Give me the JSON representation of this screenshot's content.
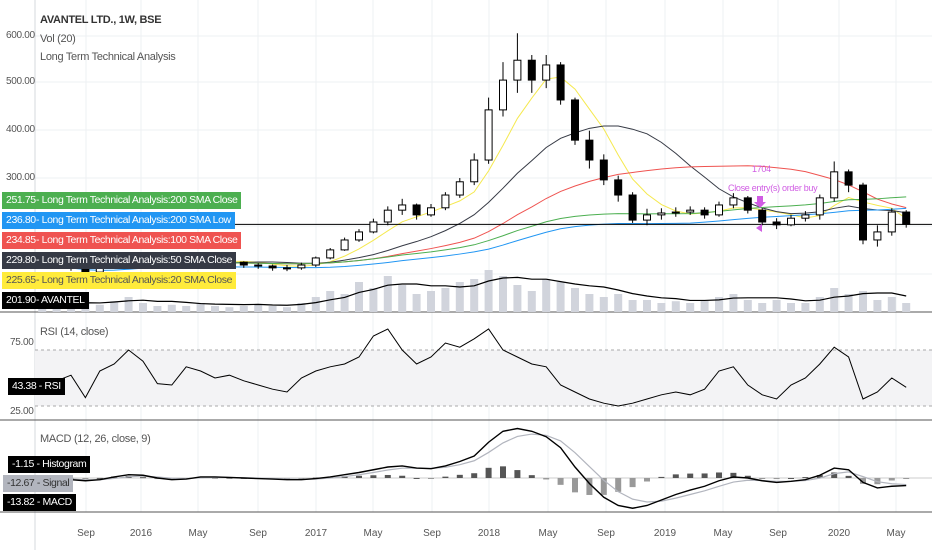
{
  "header": {
    "symbol_title": "AVANTEL LTD., 1W, BSE",
    "volume_study": "Vol (20)",
    "study_name": "Long Term Technical Analysis"
  },
  "price_axis": {
    "ticks": [
      "600.00",
      "500.00",
      "400.00",
      "300.00"
    ]
  },
  "price_tags": [
    {
      "value": "251.75",
      "label": "Long Term Technical Analysis:200 SMA Close",
      "color": "#4caf50",
      "text_color": "#ffffff"
    },
    {
      "value": "236.80",
      "label": "Long Term Technical Analysis:200 SMA Low",
      "color": "#2196f3",
      "text_color": "#ffffff"
    },
    {
      "value": "234.85",
      "label": "Long Term Technical Analysis:100 SMA Close",
      "color": "#ef5350",
      "text_color": "#ffffff"
    },
    {
      "value": "229.80",
      "label": "Long Term Technical Analysis:50 SMA Close",
      "color": "#363a45",
      "text_color": "#ffffff"
    },
    {
      "value": "225.65",
      "label": "Long Term Technical Analysis:20 SMA Close",
      "color": "#ffeb3b",
      "text_color": "#555555"
    },
    {
      "value": "201.90",
      "label": "AVANTEL",
      "color": "#000000",
      "text_color": "#ffffff"
    }
  ],
  "annotations": {
    "value_label": "1704",
    "order_label": "Close entry(s) order buy",
    "color": "#d05ce3"
  },
  "rsi": {
    "title": "RSI (14, close)",
    "ticks": [
      "75.00",
      "25.00"
    ],
    "tag_value": "43.38",
    "tag_label": "RSI"
  },
  "macd": {
    "title": "MACD (12, 26, close, 9)",
    "tags": [
      {
        "value": "-1.15",
        "label": "Histogram",
        "color": "#000000",
        "text_color": "#ffffff"
      },
      {
        "value": "-12.67",
        "label": "Signal",
        "color": "#b2b5be",
        "text_color": "#333333"
      },
      {
        "value": "-13.82",
        "label": "MACD",
        "color": "#000000",
        "text_color": "#ffffff"
      }
    ]
  },
  "time_axis": {
    "ticks": [
      "Sep",
      "2016",
      "May",
      "Sep",
      "2017",
      "May",
      "Sep",
      "2018",
      "May",
      "Sep",
      "2019",
      "May",
      "Sep",
      "2020",
      "May"
    ]
  },
  "chart_data": {
    "type": "candlestick",
    "title": "AVANTEL LTD., 1W, BSE",
    "period": "monthly approximation, Jun 2015 - Jun 2020",
    "ylim": [
      40,
      640
    ],
    "grid": true,
    "colors": {
      "up": "#ffffff",
      "down": "#000000",
      "sma20": "#f5e94f",
      "sma50": "#363a45",
      "sma100": "#ef5350",
      "sma200_close": "#4caf50",
      "sma200_low": "#2196f3",
      "volume": "#d1d4dc",
      "last_price_line": "#000000"
    },
    "close": [
      122,
      116,
      110,
      101,
      110,
      122,
      135,
      131,
      122,
      116,
      122,
      131,
      127,
      122,
      116,
      114,
      110,
      110,
      116,
      131,
      148,
      169,
      186,
      207,
      232,
      243,
      222,
      237,
      264,
      292,
      338,
      444,
      507,
      549,
      507,
      539,
      465,
      380,
      338,
      296,
      264,
      211,
      222,
      226,
      228,
      232,
      222,
      243,
      258,
      232,
      207,
      201,
      215,
      222,
      258,
      313,
      285,
      169,
      186,
      228,
      201.9
    ],
    "high": [
      130,
      125,
      119,
      112,
      115,
      126,
      140,
      142,
      133,
      124,
      126,
      136,
      134,
      130,
      124,
      120,
      117,
      116,
      121,
      134,
      152,
      174,
      192,
      214,
      240,
      256,
      246,
      245,
      270,
      300,
      352,
      470,
      545,
      606,
      560,
      560,
      545,
      470,
      400,
      350,
      305,
      270,
      235,
      236,
      238,
      240,
      238,
      250,
      268,
      262,
      236,
      215,
      222,
      230,
      265,
      335,
      318,
      290,
      200,
      236,
      232
    ],
    "low": [
      115,
      110,
      104,
      96,
      99,
      108,
      118,
      125,
      117,
      110,
      112,
      118,
      120,
      117,
      110,
      108,
      104,
      103,
      106,
      112,
      128,
      146,
      165,
      183,
      200,
      222,
      212,
      218,
      232,
      258,
      285,
      330,
      430,
      480,
      480,
      490,
      455,
      370,
      320,
      285,
      250,
      205,
      200,
      212,
      218,
      222,
      214,
      218,
      236,
      225,
      200,
      192,
      198,
      208,
      212,
      250,
      270,
      160,
      155,
      178,
      195
    ],
    "last_price": 201.9,
    "volume_relative": [
      0.1,
      0.15,
      0.1,
      0.2,
      0.12,
      0.18,
      0.25,
      0.15,
      0.1,
      0.12,
      0.1,
      0.15,
      0.1,
      0.08,
      0.1,
      0.12,
      0.1,
      0.08,
      0.15,
      0.25,
      0.35,
      0.3,
      0.5,
      0.4,
      0.6,
      0.45,
      0.3,
      0.35,
      0.4,
      0.5,
      0.55,
      0.7,
      0.6,
      0.45,
      0.35,
      0.55,
      0.5,
      0.4,
      0.3,
      0.25,
      0.3,
      0.2,
      0.2,
      0.15,
      0.18,
      0.15,
      0.2,
      0.25,
      0.3,
      0.2,
      0.15,
      0.2,
      0.15,
      0.15,
      0.25,
      0.4,
      0.3,
      0.35,
      0.2,
      0.25,
      0.15
    ],
    "rsi": {
      "ylim": [
        20,
        85
      ],
      "bands": [
        30,
        70
      ],
      "values": [
        45,
        48,
        52,
        36,
        55,
        60,
        70,
        62,
        46,
        45,
        58,
        55,
        50,
        52,
        48,
        45,
        42,
        40,
        50,
        55,
        58,
        60,
        65,
        80,
        85,
        70,
        60,
        65,
        75,
        72,
        78,
        85,
        70,
        65,
        60,
        58,
        45,
        40,
        35,
        32,
        30,
        32,
        35,
        38,
        40,
        38,
        42,
        55,
        58,
        45,
        38,
        35,
        45,
        50,
        60,
        72,
        65,
        35,
        40,
        50,
        43.38
      ]
    },
    "macd": {
      "values": [
        0,
        -2,
        -3,
        -5,
        -3,
        2,
        6,
        5,
        0,
        -3,
        -2,
        2,
        2,
        1,
        0,
        -1,
        -2,
        -3,
        -3,
        -1,
        2,
        6,
        10,
        15,
        20,
        22,
        18,
        17,
        22,
        30,
        40,
        65,
        85,
        90,
        85,
        75,
        55,
        20,
        -10,
        -35,
        -50,
        -55,
        -50,
        -40,
        -30,
        -22,
        -15,
        -5,
        2,
        0,
        -5,
        -8,
        -6,
        -3,
        5,
        18,
        15,
        -8,
        -18,
        -15,
        -13.82
      ],
      "last_signal": -12.67,
      "last_histogram": -1.15
    }
  }
}
